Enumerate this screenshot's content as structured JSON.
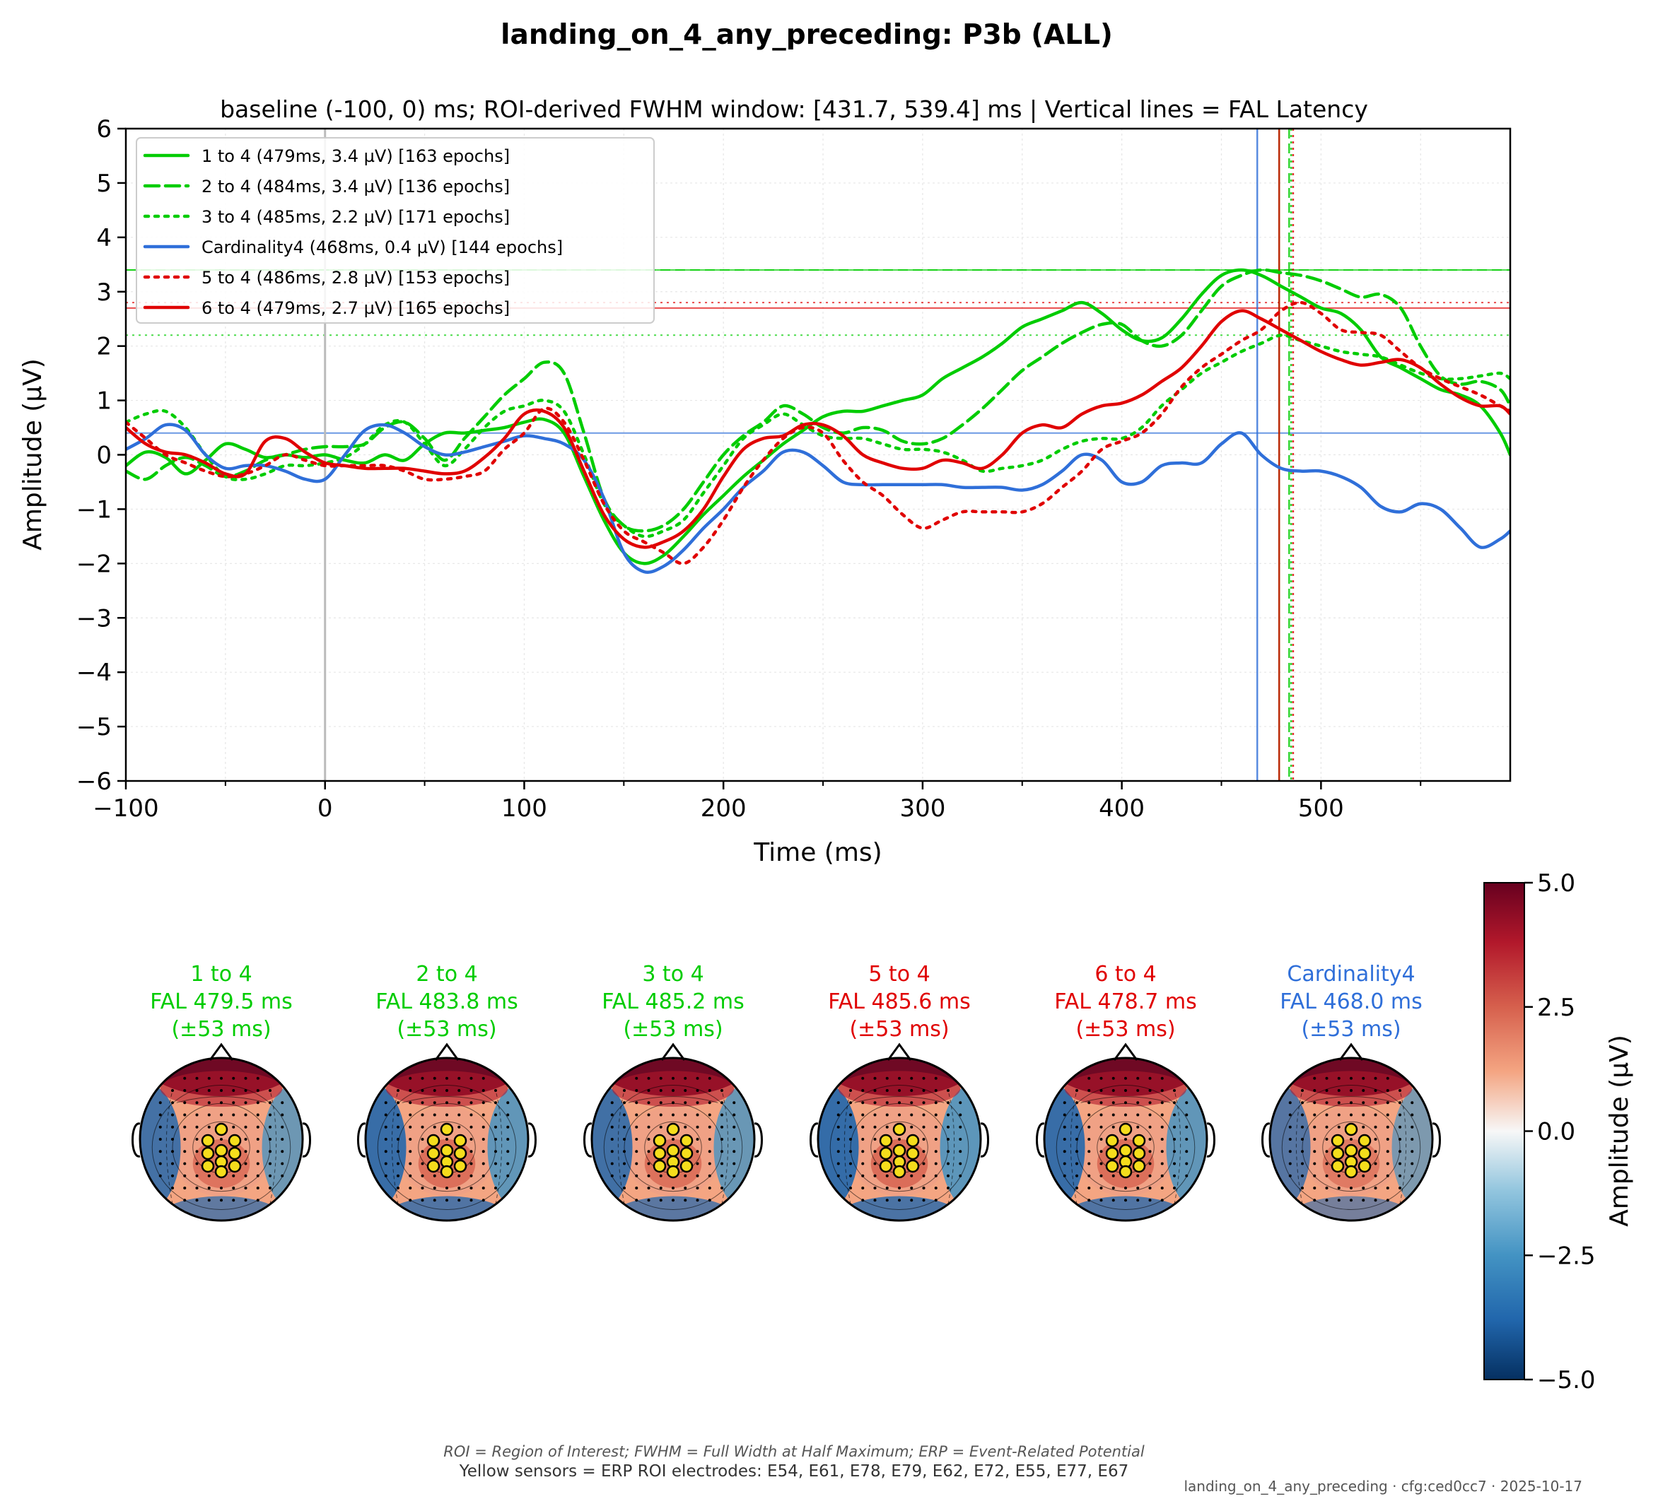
{
  "chart_data": [
    {
      "type": "line",
      "title": "landing_on_4_any_preceding: P3b (ALL)",
      "subtitle": "baseline (-100, 0) ms; ROI-derived FWHM window: [431.7, 539.4] ms | Vertical lines = FAL Latency",
      "xlabel": "Time (ms)",
      "ylabel": "Amplitude (µV)",
      "xlim": [
        -100,
        595
      ],
      "ylim": [
        -6,
        6
      ],
      "xticks": [
        -100,
        0,
        100,
        200,
        300,
        400,
        500
      ],
      "xtick_labels": [
        "−100",
        "0",
        "100",
        "200",
        "300",
        "400",
        "500"
      ],
      "yticks": [
        -6,
        -5,
        -4,
        -3,
        -2,
        -1,
        0,
        1,
        2,
        3,
        4,
        5,
        6
      ],
      "ytick_labels": [
        "−6",
        "−5",
        "−4",
        "−3",
        "−2",
        "−1",
        "0",
        "1",
        "2",
        "3",
        "4",
        "5",
        "6"
      ],
      "grid": true,
      "legend_position": "top-left",
      "x": [
        -100,
        -90,
        -80,
        -70,
        -60,
        -50,
        -40,
        -30,
        -20,
        -10,
        0,
        10,
        20,
        30,
        40,
        50,
        60,
        70,
        80,
        90,
        100,
        110,
        120,
        130,
        140,
        150,
        160,
        170,
        180,
        190,
        200,
        210,
        220,
        230,
        240,
        250,
        260,
        270,
        280,
        290,
        300,
        310,
        320,
        330,
        340,
        350,
        360,
        370,
        380,
        390,
        400,
        410,
        420,
        430,
        440,
        450,
        460,
        470,
        480,
        490,
        500,
        510,
        520,
        530,
        540,
        550,
        560,
        570,
        580,
        590,
        595
      ],
      "series": [
        {
          "name": "1 to 4 (479ms, 3.4 µV) [163 epochs]",
          "color": "#00cc00",
          "style": "solid",
          "peak_latency": 479,
          "peak_amplitude": 3.4,
          "values": [
            -0.2,
            0.05,
            -0.05,
            -0.35,
            -0.1,
            0.2,
            0.1,
            -0.05,
            0.0,
            -0.05,
            0.0,
            -0.1,
            -0.15,
            0.0,
            -0.1,
            0.2,
            0.4,
            0.4,
            0.45,
            0.5,
            0.6,
            0.65,
            0.4,
            -0.4,
            -1.2,
            -1.8,
            -2.0,
            -1.85,
            -1.5,
            -1.1,
            -0.75,
            -0.4,
            -0.1,
            0.2,
            0.45,
            0.7,
            0.8,
            0.8,
            0.9,
            1.0,
            1.1,
            1.4,
            1.6,
            1.8,
            2.05,
            2.35,
            2.5,
            2.65,
            2.8,
            2.6,
            2.3,
            2.1,
            2.15,
            2.5,
            2.95,
            3.3,
            3.4,
            3.3,
            3.1,
            2.9,
            2.7,
            2.6,
            2.3,
            1.8,
            1.6,
            1.4,
            1.2,
            1.1,
            0.9,
            0.4,
            0.0
          ]
        },
        {
          "name": "2 to 4 (484ms, 3.4 µV) [136 epochs]",
          "color": "#00cc00",
          "style": "dashed",
          "peak_latency": 484,
          "peak_amplitude": 3.4,
          "values": [
            -0.3,
            -0.45,
            -0.2,
            -0.05,
            -0.2,
            -0.4,
            -0.3,
            -0.1,
            0.0,
            0.1,
            0.15,
            0.15,
            0.2,
            0.5,
            0.6,
            0.3,
            -0.1,
            0.3,
            0.7,
            1.1,
            1.4,
            1.7,
            1.5,
            0.4,
            -0.8,
            -1.3,
            -1.4,
            -1.3,
            -1.0,
            -0.5,
            0.0,
            0.35,
            0.6,
            0.9,
            0.75,
            0.5,
            0.4,
            0.5,
            0.45,
            0.25,
            0.2,
            0.3,
            0.55,
            0.85,
            1.2,
            1.55,
            1.8,
            2.05,
            2.25,
            2.4,
            2.4,
            2.1,
            2.0,
            2.2,
            2.65,
            3.1,
            3.3,
            3.4,
            3.35,
            3.3,
            3.2,
            3.05,
            2.9,
            2.95,
            2.7,
            2.0,
            1.45,
            1.3,
            1.35,
            1.2,
            0.9
          ]
        },
        {
          "name": "3 to 4 (485ms, 2.2 µV) [171 epochs]",
          "color": "#00cc00",
          "style": "dotted",
          "peak_latency": 485,
          "peak_amplitude": 2.2,
          "values": [
            0.6,
            0.75,
            0.8,
            0.5,
            0.0,
            -0.4,
            -0.45,
            -0.35,
            -0.2,
            -0.2,
            -0.15,
            -0.05,
            0.2,
            0.55,
            0.6,
            0.2,
            -0.2,
            0.1,
            0.5,
            0.8,
            0.9,
            1.0,
            0.8,
            0.0,
            -0.9,
            -1.3,
            -1.5,
            -1.4,
            -1.2,
            -0.7,
            -0.2,
            0.3,
            0.55,
            0.75,
            0.55,
            0.35,
            0.3,
            0.3,
            0.2,
            0.1,
            0.1,
            0.05,
            -0.1,
            -0.3,
            -0.25,
            -0.2,
            -0.1,
            0.1,
            0.25,
            0.3,
            0.3,
            0.5,
            0.9,
            1.2,
            1.5,
            1.7,
            1.9,
            2.05,
            2.2,
            2.1,
            2.0,
            1.9,
            1.85,
            1.8,
            1.65,
            1.5,
            1.4,
            1.4,
            1.45,
            1.5,
            1.4
          ]
        },
        {
          "name": "Cardinality4 (468ms, 0.4 µV) [144 epochs]",
          "color": "#2f6fd9",
          "style": "solid",
          "peak_latency": 468,
          "peak_amplitude": 0.4,
          "values": [
            0.1,
            0.3,
            0.55,
            0.45,
            0.0,
            -0.25,
            -0.2,
            -0.2,
            -0.3,
            -0.45,
            -0.45,
            0.0,
            0.45,
            0.55,
            0.4,
            0.15,
            0.0,
            0.05,
            0.15,
            0.25,
            0.35,
            0.3,
            0.2,
            -0.1,
            -0.8,
            -1.8,
            -2.15,
            -2.05,
            -1.75,
            -1.35,
            -1.0,
            -0.6,
            -0.3,
            0.05,
            0.05,
            -0.2,
            -0.5,
            -0.55,
            -0.55,
            -0.55,
            -0.55,
            -0.55,
            -0.6,
            -0.6,
            -0.6,
            -0.65,
            -0.55,
            -0.3,
            0.0,
            -0.1,
            -0.5,
            -0.5,
            -0.2,
            -0.15,
            -0.15,
            0.2,
            0.4,
            0.0,
            -0.25,
            -0.3,
            -0.3,
            -0.4,
            -0.6,
            -0.95,
            -1.05,
            -0.9,
            -1.0,
            -1.35,
            -1.7,
            -1.55,
            -1.4
          ]
        },
        {
          "name": "5 to 4 (486ms, 2.8 µV) [153 epochs]",
          "color": "#e00000",
          "style": "dotted",
          "peak_latency": 486,
          "peak_amplitude": 2.8,
          "values": [
            0.6,
            0.3,
            0.0,
            -0.15,
            -0.3,
            -0.4,
            -0.35,
            -0.2,
            0.0,
            -0.1,
            -0.2,
            -0.2,
            -0.2,
            -0.2,
            -0.3,
            -0.45,
            -0.45,
            -0.4,
            -0.3,
            0.1,
            0.4,
            0.85,
            0.6,
            -0.1,
            -0.9,
            -1.4,
            -1.6,
            -1.8,
            -2.0,
            -1.7,
            -1.2,
            -0.6,
            -0.1,
            0.3,
            0.5,
            0.4,
            -0.1,
            -0.5,
            -0.75,
            -1.1,
            -1.35,
            -1.2,
            -1.05,
            -1.05,
            -1.05,
            -1.05,
            -0.9,
            -0.6,
            -0.3,
            0.1,
            0.25,
            0.4,
            0.75,
            1.25,
            1.6,
            1.85,
            2.1,
            2.3,
            2.65,
            2.8,
            2.6,
            2.3,
            2.25,
            2.2,
            1.9,
            1.6,
            1.4,
            1.25,
            1.1,
            0.9,
            0.8
          ]
        },
        {
          "name": "6 to 4 (479ms, 2.7 µV) [165 epochs]",
          "color": "#e00000",
          "style": "solid",
          "peak_latency": 479,
          "peak_amplitude": 2.7,
          "values": [
            0.5,
            0.2,
            0.05,
            0.0,
            -0.15,
            -0.35,
            -0.35,
            0.25,
            0.3,
            0.05,
            -0.15,
            -0.2,
            -0.25,
            -0.25,
            -0.25,
            -0.3,
            -0.35,
            -0.3,
            -0.05,
            0.3,
            0.75,
            0.8,
            0.5,
            -0.3,
            -1.1,
            -1.55,
            -1.7,
            -1.6,
            -1.4,
            -1.0,
            -0.4,
            0.1,
            0.3,
            0.35,
            0.55,
            0.55,
            0.35,
            0.0,
            -0.15,
            -0.25,
            -0.25,
            -0.1,
            -0.15,
            -0.25,
            0.0,
            0.4,
            0.55,
            0.5,
            0.75,
            0.9,
            0.95,
            1.1,
            1.35,
            1.6,
            2.0,
            2.45,
            2.65,
            2.5,
            2.3,
            2.1,
            1.9,
            1.75,
            1.65,
            1.7,
            1.75,
            1.6,
            1.3,
            1.05,
            0.9,
            0.9,
            0.75
          ]
        }
      ],
      "reference_lines": {
        "horizontal": [
          {
            "y": 3.4,
            "color": "#00cc00",
            "style": "solid"
          },
          {
            "y": 3.4,
            "color": "#00cc00",
            "style": "dashed"
          },
          {
            "y": 2.2,
            "color": "#00cc00",
            "style": "dotted"
          },
          {
            "y": 0.4,
            "color": "#2f6fd9",
            "style": "solid"
          },
          {
            "y": 2.8,
            "color": "#e00000",
            "style": "dotted"
          },
          {
            "y": 2.7,
            "color": "#e00000",
            "style": "solid"
          }
        ],
        "vertical": [
          {
            "x": 0,
            "color": "#bbbbbb",
            "style": "solid"
          },
          {
            "x": 468,
            "color": "#2f6fd9",
            "style": "solid"
          },
          {
            "x": 479,
            "color": "#00cc00",
            "style": "solid"
          },
          {
            "x": 479,
            "color": "#e00000",
            "style": "solid"
          },
          {
            "x": 484,
            "color": "#00cc00",
            "style": "dashed"
          },
          {
            "x": 485,
            "color": "#00cc00",
            "style": "dotted"
          },
          {
            "x": 486,
            "color": "#e00000",
            "style": "dotted"
          }
        ]
      }
    },
    {
      "type": "heatmap",
      "description": "topomaps",
      "colorbar": {
        "label": "Amplitude (µV)",
        "min": -5.0,
        "max": 5.0,
        "ticks": [
          "5.0",
          "2.5",
          "0.0",
          "−2.5",
          "−5.0"
        ],
        "tick_values": [
          5.0,
          2.5,
          0.0,
          -2.5,
          -5.0
        ]
      },
      "maps": [
        {
          "line1": "1 to 4",
          "line2": "FAL 479.5 ms",
          "line3": "(±53 ms)",
          "color": "#00cc00",
          "strength": 0.7
        },
        {
          "line1": "2 to 4",
          "line2": "FAL 483.8 ms",
          "line3": "(±53 ms)",
          "color": "#00cc00",
          "strength": 0.85
        },
        {
          "line1": "3 to 4",
          "line2": "FAL 485.2 ms",
          "line3": "(±53 ms)",
          "color": "#00cc00",
          "strength": 0.75
        },
        {
          "line1": "5 to 4",
          "line2": "FAL 485.6 ms",
          "line3": "(±53 ms)",
          "color": "#e00000",
          "strength": 0.9
        },
        {
          "line1": "6 to 4",
          "line2": "FAL 478.7 ms",
          "line3": "(±53 ms)",
          "color": "#e00000",
          "strength": 0.85
        },
        {
          "line1": "Cardinality4",
          "line2": "FAL 468.0 ms",
          "line3": "(±53 ms)",
          "color": "#2f6fd9",
          "strength": 0.5
        }
      ]
    }
  ],
  "footer": {
    "abbrev": "ROI = Region of Interest; FWHM = Full Width at Half Maximum; ERP = Event-Related Potential",
    "sensors": "Yellow sensors = ERP ROI electrodes: E54, E61, E78, E79, E62, E72, E55, E77, E67",
    "meta": "landing_on_4_any_preceding · cfg:ced0cc7 · 2025-10-17"
  }
}
